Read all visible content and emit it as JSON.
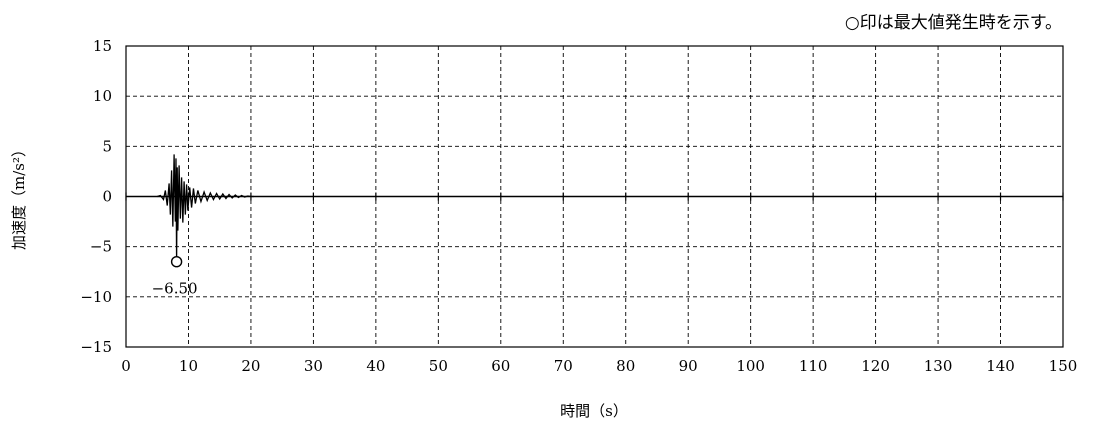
{
  "chart_data": {
    "type": "line",
    "annotation_note": "○印は最大値発生時を示す。",
    "xlabel": "時間（s）",
    "ylabel": "加速度（m/s²）",
    "xlim": [
      0,
      150
    ],
    "ylim": [
      -15,
      15
    ],
    "x_ticks": [
      0,
      10,
      20,
      30,
      40,
      50,
      60,
      70,
      80,
      90,
      100,
      110,
      120,
      130,
      140,
      150
    ],
    "y_ticks": [
      15,
      10,
      5,
      0,
      -5,
      -10,
      -15
    ],
    "x_tick_labels": [
      "0",
      "10",
      "20",
      "30",
      "40",
      "50",
      "60",
      "70",
      "80",
      "90",
      "100",
      "110",
      "120",
      "130",
      "140",
      "150"
    ],
    "y_tick_labels": [
      "15",
      "10",
      "5",
      "0",
      "−5",
      "−10",
      "−15"
    ],
    "grid": true,
    "series": [
      {
        "x": [
          5.0,
          5.5,
          6.0,
          6.3,
          6.6,
          6.9,
          7.1,
          7.3,
          7.5,
          7.7,
          7.9,
          8.0,
          8.1,
          8.2,
          8.3,
          8.5,
          8.7,
          8.9,
          9.1,
          9.3,
          9.5,
          9.7,
          9.9,
          10.2,
          10.5,
          10.8,
          11.1,
          11.5,
          12.0,
          12.5,
          13.0,
          13.5,
          14.0,
          14.5,
          15.0,
          15.5,
          16.0,
          16.5,
          17.0,
          17.5,
          18.0,
          18.5,
          19.0,
          19.5,
          20.0,
          20.5
        ],
        "y": [
          0.0,
          0.1,
          -0.3,
          0.6,
          -0.9,
          1.3,
          -1.8,
          2.6,
          -3.0,
          4.2,
          -2.5,
          3.8,
          -6.5,
          2.9,
          -3.4,
          3.1,
          -2.2,
          1.9,
          -2.6,
          1.5,
          -1.8,
          1.2,
          -1.4,
          0.9,
          -1.1,
          0.8,
          -0.7,
          0.6,
          -0.5,
          0.45,
          -0.4,
          0.35,
          -0.3,
          0.3,
          -0.25,
          0.25,
          -0.2,
          0.2,
          -0.15,
          0.15,
          -0.1,
          0.1,
          -0.05,
          0.05,
          0.0,
          0.0
        ],
        "color": "#000000"
      }
    ],
    "peak": {
      "x": 8.1,
      "y": -6.5,
      "label": "−6.50"
    }
  }
}
